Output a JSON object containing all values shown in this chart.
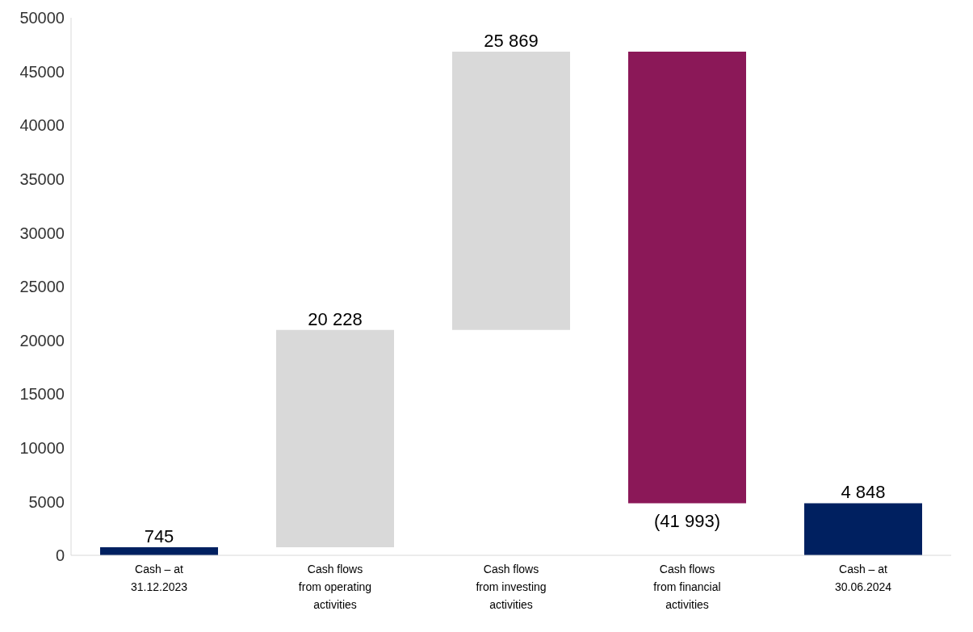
{
  "chart_data": {
    "type": "bar",
    "categories": [
      "Cash – at 31.12.2023",
      "Cash flows from operating activities",
      "Cash flows from investing activities",
      "Cash flows from financial activities",
      "Cash – at 30.06.2024"
    ],
    "values": [
      745,
      20228,
      25869,
      -41993,
      4848
    ],
    "base": [
      0,
      745,
      20973,
      46842,
      0
    ],
    "colors": [
      "#002060",
      "#d9d9d9",
      "#d9d9d9",
      "#8b1858",
      "#002060"
    ],
    "value_labels": [
      "745",
      "20 228",
      "25 869",
      "(41 993)",
      "4 848"
    ],
    "ylim": [
      0,
      50000
    ],
    "yticks": [
      0,
      5000,
      10000,
      15000,
      20000,
      25000,
      30000,
      35000,
      40000,
      45000,
      50000
    ],
    "grid": false
  }
}
